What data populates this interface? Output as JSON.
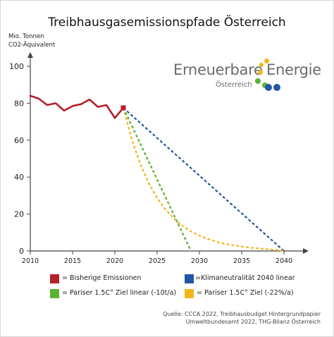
{
  "colors": {
    "historical": "#b5202a",
    "linear_neutral": "#2456a6",
    "paris_linear": "#5bb334",
    "paris_percent": "#f2b51c",
    "axis": "#444444",
    "logo_text": "#6b6b6b"
  },
  "logo": {
    "word_1": "Erneuerbare",
    "word_2": "Energie",
    "sub": "Österreich",
    "dots": [
      {
        "color": "#f2b51c"
      },
      {
        "color": "#f2b51c"
      },
      {
        "color": "#f2b51c"
      },
      {
        "color": "#5bb334"
      },
      {
        "color": "#5bb334"
      },
      {
        "color": "#2456a6"
      },
      {
        "color": "#2456a6"
      }
    ]
  },
  "legend": [
    {
      "label": "= Bisherige Emissionen",
      "color": "#b5202a"
    },
    {
      "label": "=Klimaneutralität 2040 linear",
      "color": "#2456a6"
    },
    {
      "label": "= Pariser 1.5C° Ziel linear (-10t/a)",
      "color": "#5bb334"
    },
    {
      "label": "= Pariser 1.5C° Ziel (-22%/a)",
      "color": "#f2b51c"
    }
  ],
  "source": {
    "line_1": "Quelle: CCCA 2022, Treibhausbudget Hintergrundpapier",
    "line_2": "Umweltbundesamt 2022, THG-Bilanz Österreich"
  },
  "chart_data": {
    "type": "line",
    "title": "Treibhausgasemissionspfade Österreich",
    "ylabel_line_1": "Mio. Tonnen",
    "ylabel_line_2": "CO2-Äquivalent",
    "xlabel": "",
    "xlim": [
      2010,
      2042
    ],
    "ylim": [
      0,
      105
    ],
    "x_ticks": [
      2010,
      2015,
      2020,
      2025,
      2030,
      2035,
      2040
    ],
    "y_ticks": [
      0,
      20,
      40,
      60,
      80,
      100
    ],
    "grid": false,
    "legend_position": "bottom",
    "series": [
      {
        "key": "historical",
        "style": "solid",
        "x": [
          2010,
          2011,
          2012,
          2013,
          2014,
          2015,
          2016,
          2017,
          2018,
          2019,
          2020,
          2021
        ],
        "y": [
          84.0,
          82.5,
          79.0,
          80.0,
          76.0,
          78.5,
          79.5,
          82.0,
          78.0,
          79.0,
          72.0,
          77.5
        ],
        "marker_at_last": true
      },
      {
        "key": "linear_neutral",
        "style": "dashed",
        "x": [
          2021,
          2040
        ],
        "y": [
          77.5,
          0
        ]
      },
      {
        "key": "paris_linear",
        "style": "dashed",
        "x": [
          2021,
          2029
        ],
        "y": [
          77.5,
          0
        ]
      },
      {
        "key": "paris_percent",
        "style": "dashed",
        "x": [
          2021,
          2022,
          2023,
          2024,
          2025,
          2026,
          2027,
          2028,
          2029,
          2030,
          2031,
          2032,
          2033,
          2034,
          2035,
          2036,
          2037,
          2038,
          2039,
          2040
        ],
        "y": [
          77.5,
          60.5,
          47.2,
          36.8,
          28.7,
          22.4,
          17.5,
          13.6,
          10.6,
          8.3,
          6.5,
          5.0,
          3.9,
          3.1,
          2.4,
          1.8,
          1.4,
          1.0,
          0.6,
          0
        ]
      }
    ]
  }
}
